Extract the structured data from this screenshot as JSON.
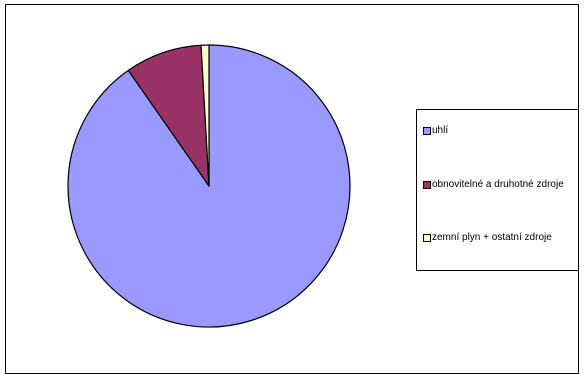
{
  "chart_data": {
    "type": "pie",
    "title": "",
    "slices": [
      {
        "label": "uhlí",
        "value": 90.3,
        "color": "#9999ff"
      },
      {
        "label": "obnovitelné a druhotné zdroje",
        "value": 8.8,
        "color": "#993366"
      },
      {
        "label": "zemní plyn + ostatní zdroje",
        "value": 0.9,
        "color": "#ffffcc"
      }
    ],
    "legend_position": "right"
  }
}
